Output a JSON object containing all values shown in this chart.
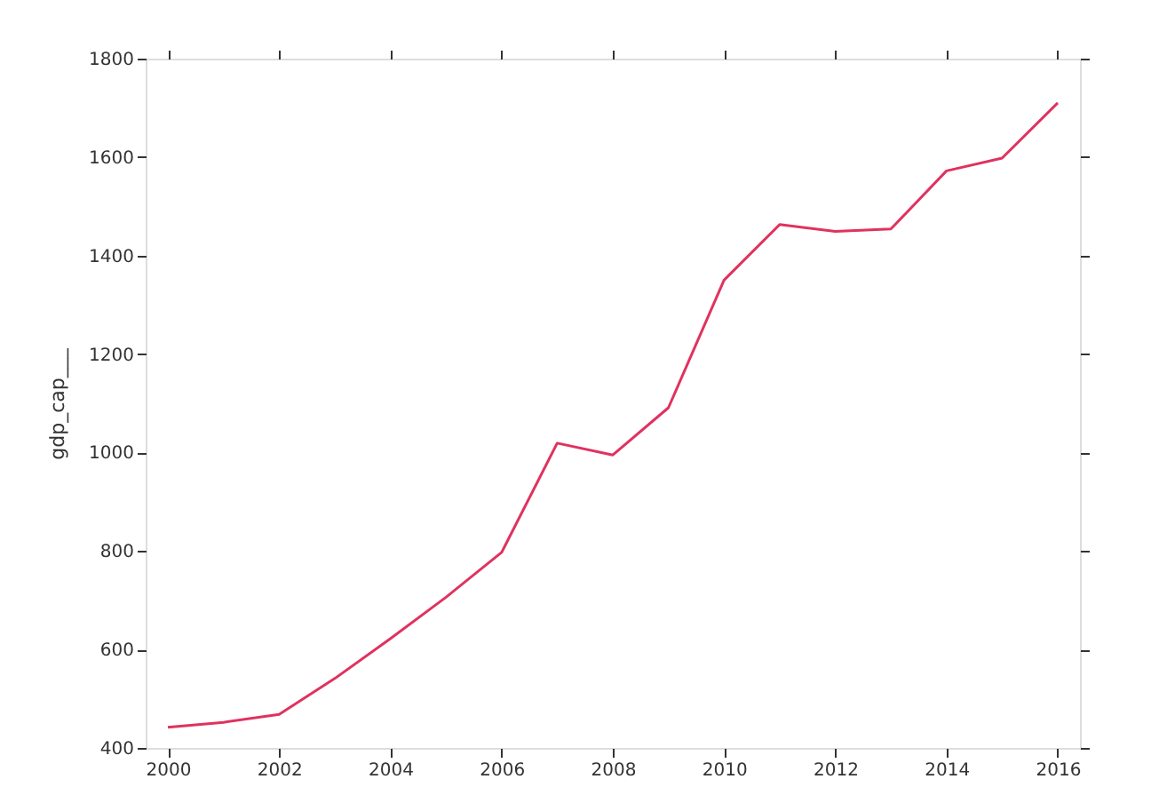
{
  "chart_data": {
    "type": "line",
    "ylabel": "gdp_cap___",
    "x": [
      2000,
      2001,
      2002,
      2003,
      2004,
      2005,
      2006,
      2007,
      2008,
      2009,
      2010,
      2011,
      2012,
      2013,
      2014,
      2015,
      2016
    ],
    "series": [
      {
        "color": "#e0325f",
        "values": [
          442,
          452,
          468,
          541,
          622,
          706,
          797,
          1019,
          995,
          1091,
          1350,
          1463,
          1449,
          1454,
          1572,
          1598,
          1710
        ]
      }
    ],
    "xlim": [
      1999.6,
      2016.4
    ],
    "xticks": [
      2000,
      2002,
      2004,
      2006,
      2008,
      2010,
      2012,
      2014,
      2016
    ],
    "ylim": [
      400,
      1800
    ],
    "yticks": [
      400,
      600,
      800,
      1000,
      1200,
      1400,
      1600,
      1800
    ],
    "grid": false,
    "legend": false,
    "marker": "none",
    "line_style": "solid"
  }
}
